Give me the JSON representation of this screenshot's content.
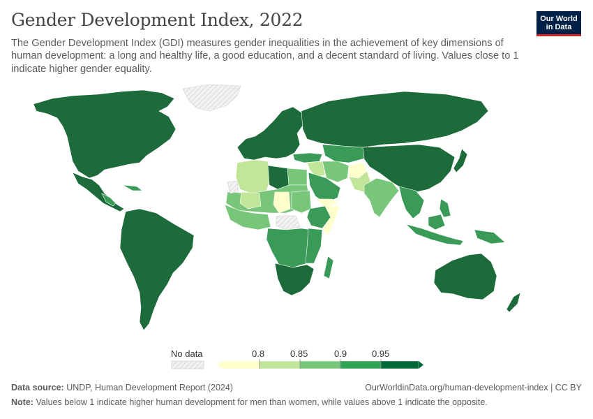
{
  "header": {
    "title": "Gender Development Index, 2022",
    "subtitle": "The Gender Development Index (GDI) measures gender inequalities in the achievement of key dimensions of human development: a long and healthy life, a good education, and a decent standard of living. Values close to 1 indicate higher gender equality.",
    "logo_line1": "Our World",
    "logo_line2": "in Data"
  },
  "legend": {
    "no_data_label": "No data",
    "ticks": [
      "0.8",
      "0.85",
      "0.9",
      "0.95"
    ],
    "colors": {
      "bin1": "#ffffcc",
      "bin2": "#c2e699",
      "bin3": "#78c679",
      "bin4": "#31a354",
      "bin5": "#006837",
      "no_data": "#e6e6e6"
    }
  },
  "map": {
    "colors": {
      "dark": "#1d6b3a",
      "mid": "#3a9a57",
      "light": "#78c679",
      "pale": "#c2e699",
      "yellow": "#ffffcc",
      "no_data": "#eeeeee",
      "border": "#ffffff"
    }
  },
  "footer": {
    "source_label": "Data source:",
    "source_text": "UNDP, Human Development Report (2024)",
    "url": "OurWorldinData.org/human-development-index | CC BY",
    "note_label": "Note:",
    "note_text": "Values below 1 indicate higher human development for men than women, while values above 1 indicate the opposite."
  }
}
